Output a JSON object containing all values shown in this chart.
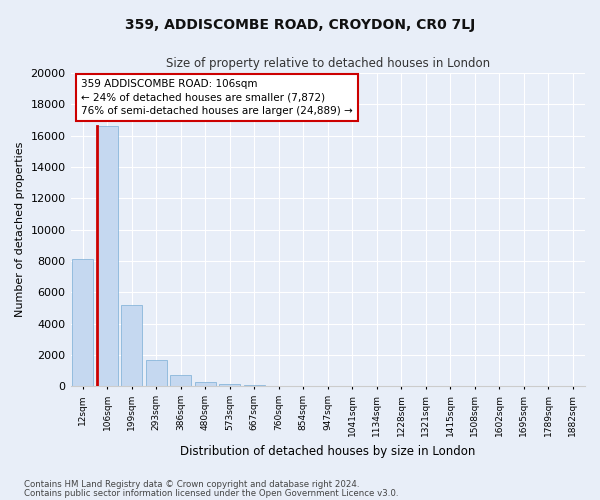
{
  "title": "359, ADDISCOMBE ROAD, CROYDON, CR0 7LJ",
  "subtitle": "Size of property relative to detached houses in London",
  "xlabel": "Distribution of detached houses by size in London",
  "ylabel": "Number of detached properties",
  "bar_color": "#c5d8f0",
  "bar_edge_color": "#7aaed6",
  "highlight_bar_index": 1,
  "highlight_edge_color": "#cc0000",
  "categories": [
    "12sqm",
    "106sqm",
    "199sqm",
    "293sqm",
    "386sqm",
    "480sqm",
    "573sqm",
    "667sqm",
    "760sqm",
    "854sqm",
    "947sqm",
    "1041sqm",
    "1134sqm",
    "1228sqm",
    "1321sqm",
    "1415sqm",
    "1508sqm",
    "1602sqm",
    "1695sqm",
    "1789sqm",
    "1882sqm"
  ],
  "values": [
    8100,
    16600,
    5200,
    1700,
    700,
    300,
    175,
    100,
    50,
    10,
    5,
    2,
    1,
    0,
    0,
    0,
    0,
    0,
    0,
    0,
    0
  ],
  "ylim": [
    0,
    20000
  ],
  "yticks": [
    0,
    2000,
    4000,
    6000,
    8000,
    10000,
    12000,
    14000,
    16000,
    18000,
    20000
  ],
  "annotation_text": "359 ADDISCOMBE ROAD: 106sqm\n← 24% of detached houses are smaller (7,872)\n76% of semi-detached houses are larger (24,889) →",
  "annotation_box_color": "#ffffff",
  "annotation_box_edge": "#cc0000",
  "footer1": "Contains HM Land Registry data © Crown copyright and database right 2024.",
  "footer2": "Contains public sector information licensed under the Open Government Licence v3.0.",
  "background_color": "#e8eef8",
  "grid_color": "#ffffff",
  "spine_color": "#cccccc"
}
